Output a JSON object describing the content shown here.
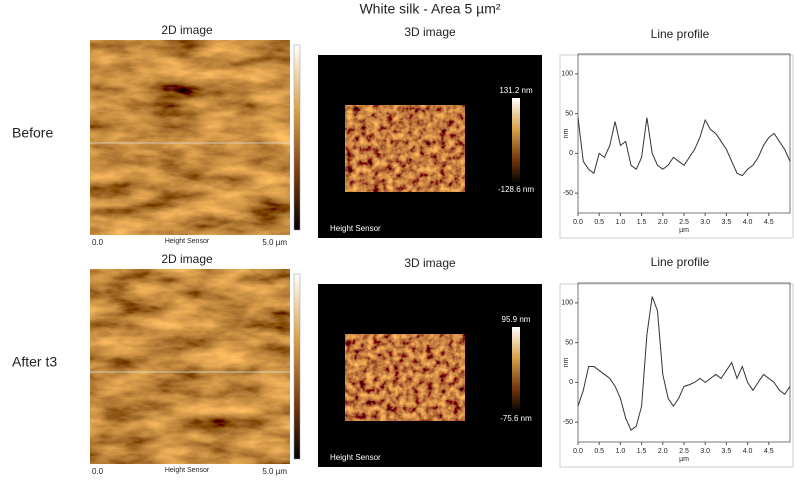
{
  "title": "White silk - Area 5 µm²",
  "rows": [
    {
      "label": "Before",
      "image_2d": {
        "heading": "2D image",
        "x_start": "0.0",
        "x_end": "5.0 µm",
        "caption": "Height Sensor"
      },
      "image_3d": {
        "heading": "3D image",
        "max_label": "131.2 nm",
        "min_label": "-128.6 nm",
        "caption": "Height Sensor"
      },
      "profile": {
        "heading": "Line profile",
        "x_label": "µm",
        "y_label": "nm",
        "xlim": [
          0,
          5
        ],
        "ylim": [
          -75,
          125
        ],
        "xticks": [
          {
            "value": 0,
            "label": "0.0"
          },
          0.5,
          {
            "value": 1,
            "label": "1.0"
          },
          1.5,
          {
            "value": 2,
            "label": "2.0"
          },
          2.5,
          {
            "value": 3,
            "label": "3.0"
          },
          3.5,
          {
            "value": 4,
            "label": "4.0"
          },
          4.5
        ],
        "yticks": [
          100,
          50,
          0,
          -50
        ],
        "x": [
          0,
          0.125,
          0.25,
          0.375,
          0.5,
          0.625,
          0.75,
          0.875,
          1,
          1.125,
          1.25,
          1.375,
          1.5,
          1.625,
          1.75,
          1.875,
          2,
          2.125,
          2.25,
          2.375,
          2.5,
          2.625,
          2.75,
          2.875,
          3,
          3.125,
          3.25,
          3.375,
          3.5,
          3.625,
          3.75,
          3.875,
          4,
          4.125,
          4.25,
          4.375,
          4.5,
          4.625,
          4.75,
          4.875,
          5
        ],
        "values": [
          45,
          -10,
          -20,
          -25,
          0,
          -5,
          10,
          40,
          10,
          15,
          -15,
          -20,
          -5,
          45,
          0,
          -15,
          -20,
          -15,
          -5,
          -10,
          -15,
          -5,
          5,
          20,
          42,
          30,
          25,
          15,
          5,
          -10,
          -25,
          -28,
          -20,
          -15,
          -5,
          10,
          20,
          25,
          15,
          5,
          -10
        ]
      }
    },
    {
      "label": "After t3",
      "image_2d": {
        "heading": "2D image",
        "x_start": "0.0",
        "x_end": "5.0 µm",
        "caption": "Height Sensor"
      },
      "image_3d": {
        "heading": "3D image",
        "max_label": "95.9 nm",
        "min_label": "-75.6 nm",
        "caption": "Height Sensor"
      },
      "profile": {
        "heading": "Line profile",
        "x_label": "µm",
        "y_label": "nm",
        "xlim": [
          0,
          5
        ],
        "ylim": [
          -75,
          125
        ],
        "xticks": [
          {
            "value": 0,
            "label": "0.0"
          },
          0.5,
          {
            "value": 1,
            "label": "1.0"
          },
          1.5,
          {
            "value": 2,
            "label": "2.0"
          },
          2.5,
          {
            "value": 3,
            "label": "3.0"
          },
          3.5,
          {
            "value": 4,
            "label": "4.0"
          },
          4.5
        ],
        "yticks": [
          100,
          50,
          0,
          -50
        ],
        "x": [
          0,
          0.125,
          0.25,
          0.375,
          0.5,
          0.625,
          0.75,
          0.875,
          1,
          1.125,
          1.25,
          1.375,
          1.5,
          1.625,
          1.75,
          1.875,
          2,
          2.125,
          2.25,
          2.375,
          2.5,
          2.625,
          2.75,
          2.875,
          3,
          3.125,
          3.25,
          3.375,
          3.5,
          3.625,
          3.75,
          3.875,
          4,
          4.125,
          4.25,
          4.375,
          4.5,
          4.625,
          4.75,
          4.875,
          5
        ],
        "values": [
          -30,
          -10,
          20,
          20,
          15,
          10,
          5,
          -5,
          -20,
          -45,
          -60,
          -55,
          -30,
          60,
          108,
          90,
          10,
          -20,
          -30,
          -20,
          -5,
          -3,
          0,
          5,
          0,
          5,
          10,
          5,
          15,
          25,
          5,
          20,
          0,
          -10,
          0,
          10,
          5,
          0,
          -10,
          -15,
          -5
        ]
      }
    }
  ]
}
